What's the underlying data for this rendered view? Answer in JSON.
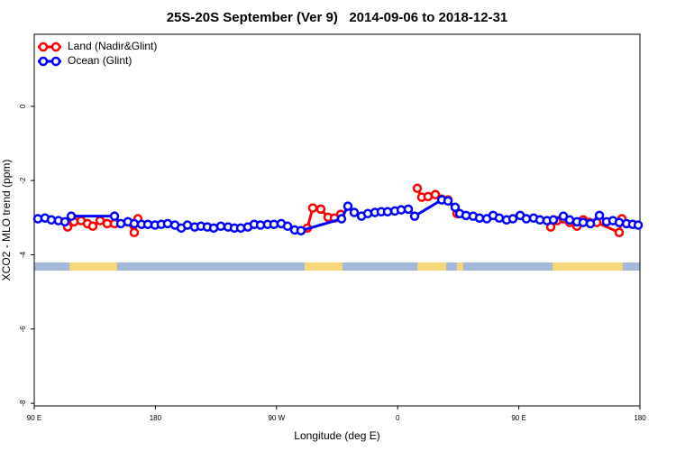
{
  "chart_data": {
    "type": "line",
    "title": "25S-20S September (Ver 9)   2014-09-06 to 2018-12-31",
    "x_label": "Longitude (deg E)",
    "y_label": "XCO2 - MLO trend (ppm)",
    "xlim": [
      90,
      540
    ],
    "xticks": [
      {
        "value": 90,
        "label": "90 E"
      },
      180,
      {
        "value": 270,
        "label": "90 W"
      },
      {
        "value": 360,
        "label": "0"
      },
      {
        "value": 450,
        "label": "90 E"
      },
      {
        "value": 540,
        "label": "180"
      }
    ],
    "ylim": [
      -8.07,
      1.94
    ],
    "yticks": [
      0,
      -2,
      -4,
      -6,
      -8
    ],
    "legend": "top-left",
    "series": [
      {
        "name": "Land (Nadir&Glint)",
        "color": "#ff0000",
        "x": [
          114.8,
          119.5,
          124.8,
          129.5,
          133.5,
          138.9,
          144.2,
          149.6,
          159.6,
          164.3,
          167,
          null,
          292.9,
          296.9,
          302.9,
          308.3,
          313,
          317.7,
          null,
          374.6,
          377.9,
          382.6,
          388,
          392.7,
          397.4,
          404.1,
          null,
          473.7,
          478.4,
          483.1,
          487.8,
          493.2,
          497.8,
          502.5,
          507.9,
          524.6,
          526.6
        ],
        "values": [
          -3.25,
          -3.11,
          -3.08,
          -3.16,
          -3.23,
          -3.08,
          -3.16,
          -3.16,
          -3.11,
          -3.4,
          -3.03,
          null,
          -3.28,
          -2.74,
          -2.77,
          -2.99,
          -3.01,
          -2.91,
          null,
          -2.21,
          -2.45,
          -2.43,
          -2.38,
          -2.5,
          -2.52,
          -2.89,
          null,
          -3.25,
          -3.08,
          -3.03,
          -3.13,
          -3.23,
          -3.06,
          -3.13,
          -3.13,
          -3.4,
          -3.03
        ]
      },
      {
        "name": "Ocean (Glint)",
        "color": "#0000ff",
        "x": [
          92.7,
          98,
          102.7,
          108,
          112.8,
          117.5,
          149.6,
          154.3,
          159.6,
          164.3,
          169.7,
          174.4,
          179.7,
          184.4,
          189.1,
          194.5,
          199.2,
          203.8,
          209.2,
          213.9,
          218.6,
          223.3,
          228.6,
          234,
          238.7,
          243.4,
          248.7,
          253.4,
          258.1,
          263.4,
          268.1,
          273.5,
          278.2,
          283.5,
          288.2,
          318.3,
          323,
          327.7,
          333.1,
          337.8,
          343.1,
          347.8,
          352.5,
          357.9,
          362.6,
          367.9,
          372.6,
          392.7,
          397.4,
          402.7,
          406.1,
          410.8,
          416.1,
          420.8,
          426.2,
          430.9,
          435.5,
          440.9,
          445.6,
          451,
          455.6,
          461,
          465.7,
          471,
          475.7,
          483.1,
          487.8,
          493.2,
          497.8,
          503.2,
          509.9,
          515.2,
          519.9,
          524.6,
          530,
          534.6,
          538.7
        ],
        "values": [
          -3.03,
          -3.01,
          -3.06,
          -3.08,
          -3.11,
          -2.96,
          -2.96,
          -3.16,
          -3.11,
          -3.16,
          -3.18,
          -3.18,
          -3.2,
          -3.18,
          -3.16,
          -3.2,
          -3.28,
          -3.2,
          -3.25,
          -3.23,
          -3.25,
          -3.28,
          -3.23,
          -3.25,
          -3.28,
          -3.28,
          -3.25,
          -3.18,
          -3.2,
          -3.18,
          -3.18,
          -3.16,
          -3.23,
          -3.33,
          -3.35,
          -3.03,
          -2.69,
          -2.86,
          -2.96,
          -2.89,
          -2.86,
          -2.84,
          -2.84,
          -2.82,
          -2.79,
          -2.77,
          -2.96,
          -2.52,
          -2.55,
          -2.72,
          -2.89,
          -2.94,
          -2.96,
          -3.01,
          -3.03,
          -2.94,
          -3.01,
          -3.06,
          -3.03,
          -2.94,
          -3.03,
          -3.01,
          -3.06,
          -3.08,
          -3.06,
          -2.96,
          -3.06,
          -3.11,
          -3.13,
          -3.16,
          -2.94,
          -3.11,
          -3.08,
          -3.13,
          -3.16,
          -3.18,
          -3.2
        ]
      }
    ]
  }
}
